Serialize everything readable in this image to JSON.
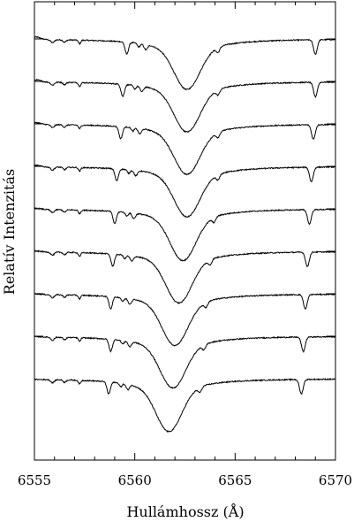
{
  "chart_data": {
    "type": "line",
    "title": "",
    "xlabel": "Hullámhossz (Å)",
    "ylabel": "Relatív Intenzitás",
    "xlim": [
      6555,
      6570
    ],
    "x_ticks": [
      "6555",
      "6560",
      "6565",
      "6570"
    ],
    "series_style": {
      "color": "#000000"
    },
    "line_centers": {
      "h_alpha": [
        6562.6,
        6562.6,
        6562.6,
        6562.6,
        6562.4,
        6562.2,
        6562.0,
        6561.9,
        6561.7
      ],
      "left_feature": [
        6559.6,
        6559.4,
        6559.3,
        6559.1,
        6559.0,
        6558.9,
        6558.8,
        6558.8,
        6558.7
      ],
      "right_feature": [
        6569.0,
        6569.0,
        6568.9,
        6568.8,
        6568.7,
        6568.6,
        6568.5,
        6568.4,
        6568.3
      ]
    },
    "series": [
      {
        "name": "",
        "offset": 8,
        "depth": 0.62,
        "center": 6562.6
      },
      {
        "name": "",
        "offset": 7,
        "depth": 0.62,
        "center": 6562.6
      },
      {
        "name": "",
        "offset": 6,
        "depth": 0.62,
        "center": 6562.6
      },
      {
        "name": "",
        "offset": 5,
        "depth": 0.62,
        "center": 6562.6
      },
      {
        "name": "",
        "offset": 4,
        "depth": 0.64,
        "center": 6562.4
      },
      {
        "name": "",
        "offset": 3,
        "depth": 0.64,
        "center": 6562.2
      },
      {
        "name": "",
        "offset": 2,
        "depth": 0.64,
        "center": 6562.0
      },
      {
        "name": "",
        "offset": 1,
        "depth": 0.64,
        "center": 6561.9
      },
      {
        "name": "",
        "offset": 0,
        "depth": 0.66,
        "center": 6561.7
      }
    ]
  }
}
